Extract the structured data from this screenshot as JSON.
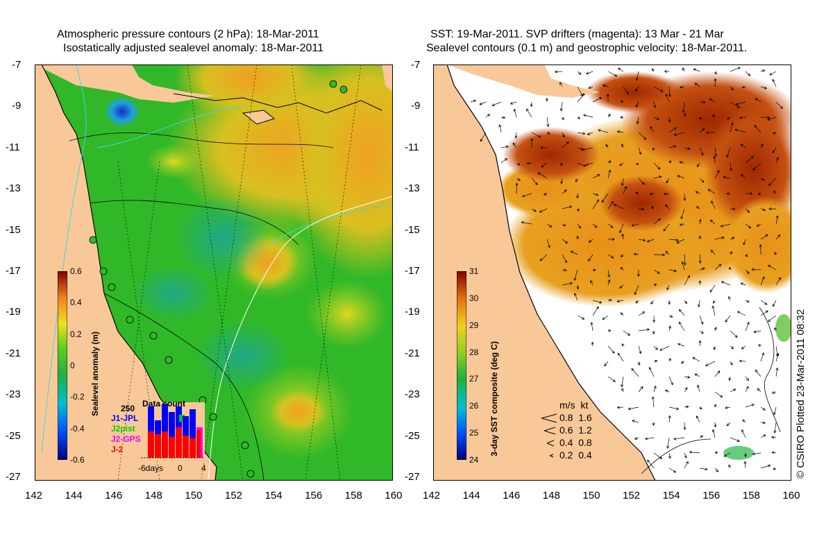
{
  "left": {
    "title_line1": "Atmospheric pressure contours (2 hPa): 18-Mar-2011",
    "title_line2": "Isostatically adjusted sealevel anomaly: 18-Mar-2011",
    "colorbar_label": "Sealevel anomaly (m)",
    "colorbar_ticks": [
      "0.6",
      "0.4",
      "0.2",
      "0",
      "-0.2",
      "-0.4",
      "-0.6"
    ],
    "inset": {
      "title": "Data count",
      "max_label": "250",
      "series": [
        {
          "name": "J1-JPL",
          "color": "#0000ff"
        },
        {
          "name": "J2pist",
          "color": "#00cc00"
        },
        {
          "name": "J2-GPS",
          "color": "#ff00ff"
        },
        {
          "name": "J-2",
          "color": "#ff0000"
        }
      ],
      "x_labels": [
        "-6days",
        "0",
        "4"
      ]
    }
  },
  "right": {
    "title_line1": "SST: 19-Mar-2011. SVP drifters (magenta): 13 Mar - 21 Mar",
    "title_line2": "Sealevel contours (0.1 m) and geostrophic velocity: 18-Mar-2011.",
    "colorbar_label": "3-day SST composite (deg C)",
    "colorbar_ticks": [
      "31",
      "30",
      "29",
      "28",
      "27",
      "26",
      "25",
      "24"
    ],
    "velocity_legend": {
      "header": "m/s  kt",
      "rows": [
        "0.8  1.6",
        "0.6  1.2",
        "0.4  0.8",
        "0.2  0.4"
      ]
    },
    "credit": "© CSIRO Plotted 23-Mar-2011 08:32"
  },
  "axes": {
    "y_ticks": [
      "-7",
      "-9",
      "-11",
      "-13",
      "-15",
      "-17",
      "-19",
      "-21",
      "-23",
      "-25",
      "-27"
    ],
    "x_ticks": [
      "142",
      "144",
      "146",
      "148",
      "150",
      "152",
      "154",
      "156",
      "158",
      "160"
    ]
  },
  "colors": {
    "land": "#f9c898",
    "sla_mid": "#33bb22",
    "sst_hot": "#b43c00",
    "sst_warm": "#e8901a"
  }
}
